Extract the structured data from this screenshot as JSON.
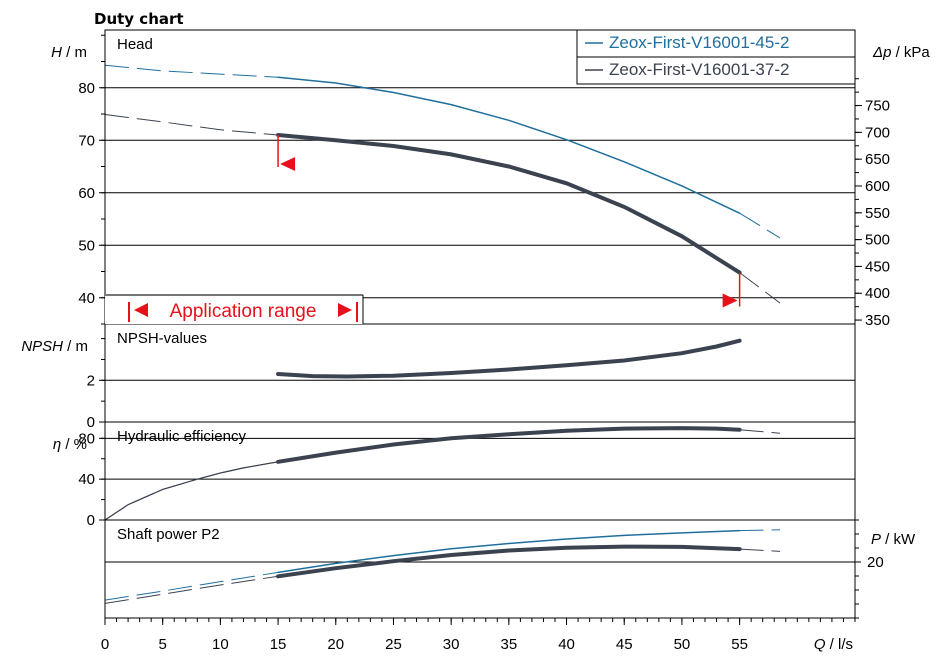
{
  "chart_data": {
    "title": "Duty chart",
    "colors": {
      "pump_45": "#1f6f9e",
      "pump_37": "#3b4250",
      "marker": "#e8101a",
      "grid": "#000000"
    },
    "x_axis": {
      "label_symbol": "Q",
      "label_unit": "/ l/s",
      "min": 0,
      "max": 65,
      "ticks": [
        0,
        5,
        10,
        15,
        20,
        25,
        30,
        35,
        40,
        45,
        50,
        55
      ]
    },
    "legend": {
      "entries": [
        "Zeox-First-V16001-45-2",
        "Zeox-First-V16001-37-2"
      ],
      "placement": "top-right"
    },
    "application_range": {
      "label": "Application range",
      "q_min": 15,
      "q_max": 55
    },
    "panels": [
      {
        "type": "line",
        "id": "head",
        "title": "Head",
        "ylabel_symbol": "H",
        "ylabel_unit": "/ m",
        "ylim": [
          35,
          91
        ],
        "yticks": [
          40,
          50,
          60,
          70,
          80
        ],
        "right_axis": {
          "label_symbol": "Δp",
          "label_unit": "/ kPa",
          "factor": 9.79,
          "ticks": [
            350,
            400,
            450,
            500,
            550,
            600,
            650,
            700,
            750
          ]
        },
        "series": [
          {
            "name": "Zeox-First-V16001-45-2",
            "color": "pump_45",
            "width": 1.5,
            "x": [
              0,
              5,
              10,
              15,
              20,
              25,
              30,
              35,
              40,
              45,
              50,
              55,
              58.5
            ],
            "y": [
              84.3,
              83.2,
              82.6,
              82.0,
              80.9,
              79.1,
              76.8,
              73.8,
              70.1,
              65.9,
              61.3,
              56.1,
              51.4
            ]
          },
          {
            "name": "Zeox-First-V16001-37-2",
            "color": "pump_37",
            "width": 4,
            "x": [
              0,
              5,
              10,
              15,
              20,
              25,
              30,
              35,
              40,
              45,
              50,
              55,
              58.5
            ],
            "y": [
              74.9,
              73.5,
              72.0,
              71.0,
              70.0,
              68.9,
              67.3,
              65.0,
              61.8,
              57.3,
              51.7,
              44.8,
              39.0
            ]
          }
        ]
      },
      {
        "type": "line",
        "id": "npsh",
        "title": "NPSH-values",
        "ylabel_symbol": "NPSH",
        "ylabel_unit": "/ m",
        "ylim": [
          0,
          4.7
        ],
        "yticks": [
          0,
          2
        ],
        "series": [
          {
            "name": "Zeox-First-V16001-37-2",
            "color": "pump_37",
            "width": 4,
            "x": [
              15,
              18,
              21,
              25,
              30,
              35,
              40,
              45,
              50,
              53,
              55
            ],
            "y": [
              2.3,
              2.2,
              2.18,
              2.22,
              2.35,
              2.52,
              2.72,
              2.95,
              3.3,
              3.62,
              3.9
            ]
          }
        ]
      },
      {
        "type": "line",
        "id": "efficiency",
        "title": "Hydraulic efficiency",
        "ylabel_symbol": "η",
        "ylabel_unit": "/ %",
        "ylim": [
          0,
          96
        ],
        "yticks": [
          0,
          40,
          80
        ],
        "series": [
          {
            "name": "Zeox-First-V16001-37-2",
            "color": "pump_37",
            "width": 4,
            "x": [
              0,
              2,
              5,
              8,
              10,
              12,
              15,
              20,
              25,
              30,
              35,
              40,
              45,
              50,
              53,
              55,
              58.5
            ],
            "y": [
              0,
              15,
              30,
              40,
              46,
              51,
              57,
              66,
              74,
              80,
              84,
              87.5,
              89.5,
              90,
              89.5,
              88.5,
              85
            ]
          }
        ]
      },
      {
        "type": "line",
        "id": "power",
        "title": "Shaft power P2",
        "ylabel_symbol": "P",
        "ylabel_unit": "/ kW",
        "ylim": [
          0,
          35
        ],
        "yticks": [
          20
        ],
        "series": [
          {
            "name": "Zeox-First-V16001-45-2",
            "color": "pump_45",
            "width": 1.5,
            "x": [
              0,
              5,
              10,
              15,
              20,
              25,
              30,
              35,
              40,
              45,
              50,
              55,
              58.5
            ],
            "y": [
              6.4,
              9.6,
              13.0,
              16.3,
              19.5,
              22.3,
              24.7,
              26.6,
              28.2,
              29.5,
              30.4,
              31.2,
              31.5
            ]
          },
          {
            "name": "Zeox-First-V16001-37-2",
            "color": "pump_37",
            "width": 4,
            "x": [
              0,
              5,
              10,
              15,
              20,
              25,
              30,
              35,
              40,
              45,
              50,
              55,
              58.5
            ],
            "y": [
              5.2,
              8.5,
              11.8,
              14.9,
              17.8,
              20.3,
              22.5,
              24.1,
              25.1,
              25.5,
              25.4,
              24.6,
              23.8
            ]
          }
        ]
      }
    ]
  }
}
